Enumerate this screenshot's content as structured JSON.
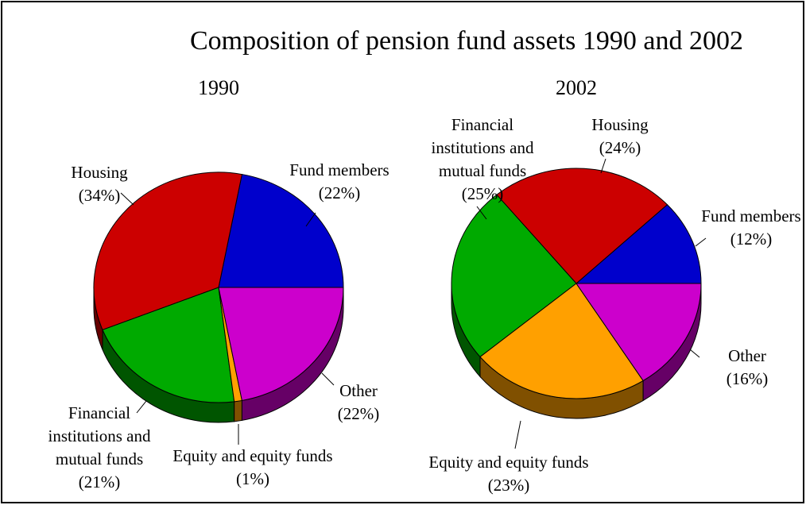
{
  "title": "Composition of pension fund assets 1990 and 2002",
  "chart_data": [
    {
      "type": "pie",
      "title": "1990",
      "categories": [
        "Fund members",
        "Housing",
        "Financial institutions and mutual funds",
        "Equity and equity funds",
        "Other"
      ],
      "values": [
        22,
        34,
        21,
        1,
        22
      ],
      "value_labels": [
        "(22%)",
        "(34%)",
        "(21%)",
        "(1%)",
        "(22%)"
      ],
      "colors": [
        "#0000cc",
        "#cc0000",
        "#00aa00",
        "#ffa000",
        "#cc00cc"
      ]
    },
    {
      "type": "pie",
      "title": "2002",
      "categories": [
        "Fund members",
        "Housing",
        "Financial institutions and mutual funds",
        "Equity and equity funds",
        "Other"
      ],
      "values": [
        12,
        24,
        25,
        23,
        16
      ],
      "value_labels": [
        "(12%)",
        "(24%)",
        "(25%)",
        "(23%)",
        "(16%)"
      ],
      "colors": [
        "#0000cc",
        "#cc0000",
        "#00aa00",
        "#ffa000",
        "#cc00cc"
      ]
    }
  ]
}
